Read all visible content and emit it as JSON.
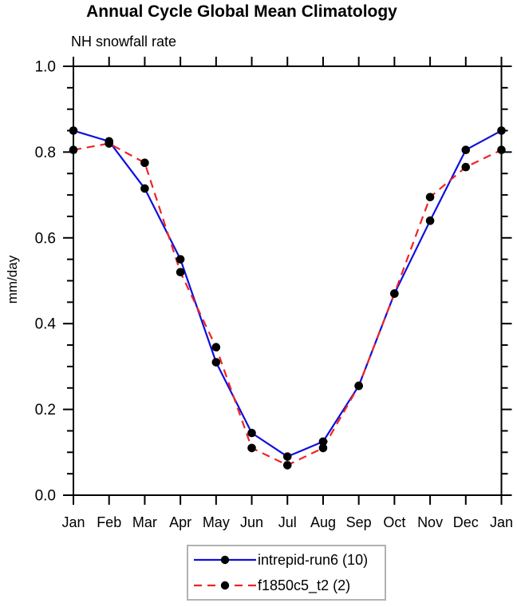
{
  "title": "Annual Cycle Global Mean Climatology",
  "subtitle": "NH snowfall rate",
  "ylabel": "mm/day",
  "chart_data": {
    "type": "line",
    "categories": [
      "Jan",
      "Feb",
      "Mar",
      "Apr",
      "May",
      "Jun",
      "Jul",
      "Aug",
      "Sep",
      "Oct",
      "Nov",
      "Dec",
      "Jan"
    ],
    "series": [
      {
        "name": "intrepid-run6 (10)",
        "color": "#0f0fdc",
        "line_style": "solid",
        "marker": "filled-circle",
        "marker_color": "#000000",
        "values": [
          0.85,
          0.825,
          0.715,
          0.55,
          0.31,
          0.145,
          0.09,
          0.125,
          0.255,
          0.47,
          0.64,
          0.805,
          0.85
        ]
      },
      {
        "name": "f1850c5_t2 (2)",
        "color": "#ef2424",
        "line_style": "dashed",
        "marker": "filled-circle",
        "marker_color": "#000000",
        "values": [
          0.805,
          0.82,
          0.775,
          0.52,
          0.345,
          0.11,
          0.07,
          0.11,
          0.255,
          0.47,
          0.695,
          0.765,
          0.805
        ]
      }
    ],
    "title": "Annual Cycle Global Mean Climatology",
    "subtitle": "NH snowfall rate",
    "xlabel": "",
    "ylabel": "mm/day",
    "ylim": [
      0.0,
      1.0
    ],
    "yticks": [
      0.0,
      0.2,
      0.4,
      0.6,
      0.8,
      1.0
    ],
    "ytick_labels": [
      "0.0",
      "0.2",
      "0.4",
      "0.6",
      "0.8",
      "1.0"
    ],
    "minor_tick_step": 0.05,
    "grid": false,
    "legend_position": "bottom-center"
  },
  "colors": {
    "axis": "#000000",
    "legend_border": "#b2b2b2"
  }
}
